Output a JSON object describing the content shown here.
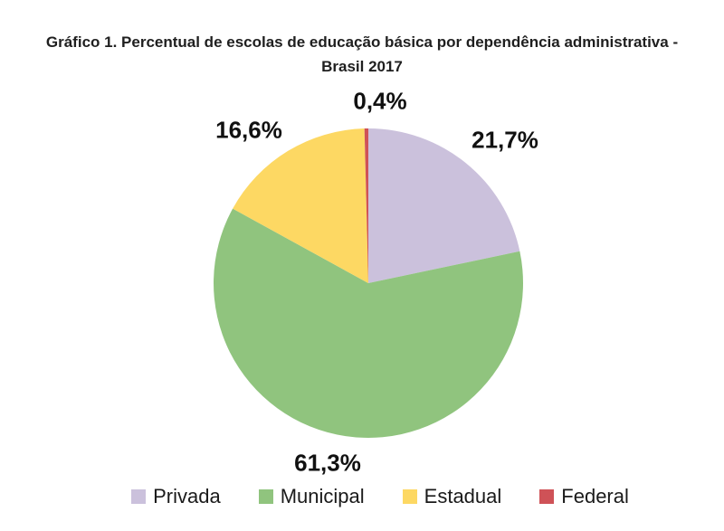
{
  "page": {
    "background": "#ffffff"
  },
  "chart_data": {
    "type": "pie",
    "title": "Gráfico 1. Percentual de escolas de educação básica por dependência administrativa - Brasil 2017",
    "title_line1": "Gráfico 1. Percentual de escolas de educação básica por dependência administrativa -",
    "title_line2": "Brasil 2017",
    "values_unit": "percent",
    "decimal_separator": ",",
    "start_angle_deg": -90,
    "direction": "clockwise",
    "legend_position": "bottom",
    "total": 100,
    "slices": [
      {
        "label": "Privada",
        "value": 21.7,
        "display": "21,7%",
        "color": "#CBC1DC"
      },
      {
        "label": "Municipal",
        "value": 61.3,
        "display": "61,3%",
        "color": "#90C47E"
      },
      {
        "label": "Estadual",
        "value": 16.6,
        "display": "16,6%",
        "color": "#FDD863"
      },
      {
        "label": "Federal",
        "value": 0.4,
        "display": "0,4%",
        "color": "#CF5257"
      }
    ]
  }
}
